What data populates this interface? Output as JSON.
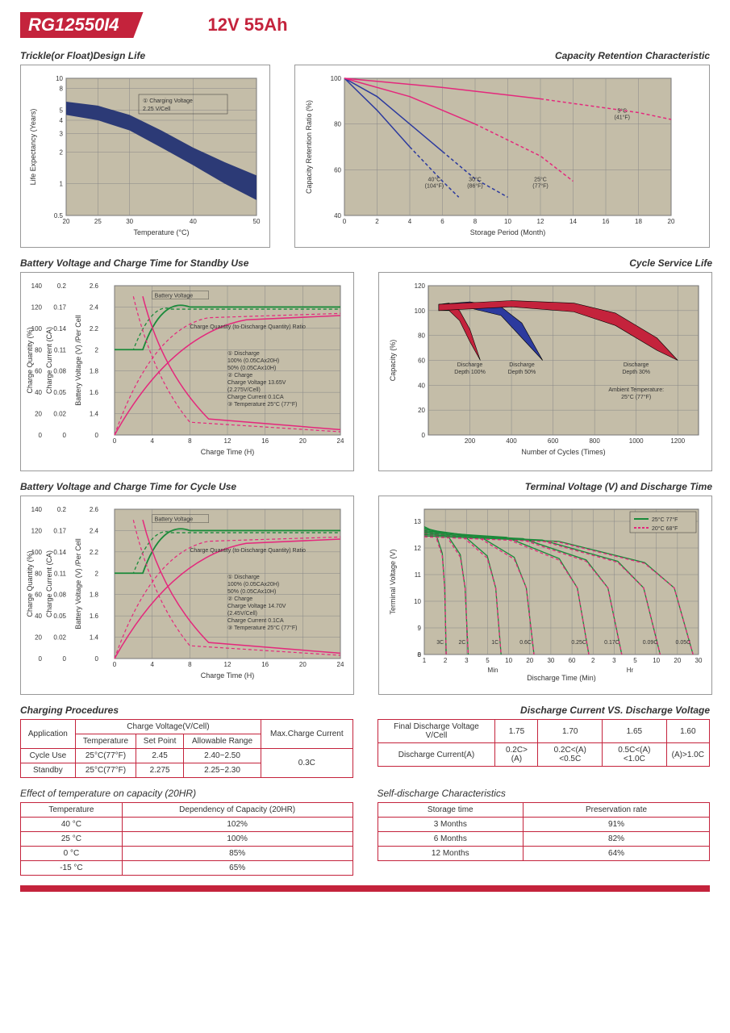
{
  "header": {
    "model": "RG12550I4",
    "spec": "12V  55Ah"
  },
  "chart1": {
    "title": "Trickle(or Float)Design Life",
    "xlabel": "Temperature (°C)",
    "ylabel": "Life Expectancy (Years)",
    "xticks": [
      20,
      25,
      30,
      40,
      50
    ],
    "yticks": [
      0.5,
      1,
      2,
      3,
      4,
      5,
      8,
      10
    ],
    "yscale": "log",
    "band_upper": [
      [
        20,
        6
      ],
      [
        25,
        5.5
      ],
      [
        30,
        4.5
      ],
      [
        35,
        3.2
      ],
      [
        40,
        2.2
      ],
      [
        45,
        1.6
      ],
      [
        50,
        1.2
      ]
    ],
    "band_lower": [
      [
        20,
        4.5
      ],
      [
        25,
        4
      ],
      [
        30,
        3.2
      ],
      [
        35,
        2.2
      ],
      [
        40,
        1.5
      ],
      [
        45,
        1.0
      ],
      [
        50,
        0.7
      ]
    ],
    "band_color": "#2c3a76",
    "annotation": "① Charging Voltage 2.25 V/Cell",
    "bg": "#c4bda8",
    "grid": "#888"
  },
  "chart2": {
    "title": "Capacity Retention Characteristic",
    "xlabel": "Storage Period (Month)",
    "ylabel": "Capacity Retention Ratio (%)",
    "xticks": [
      0,
      2,
      4,
      6,
      8,
      10,
      12,
      14,
      16,
      18,
      20
    ],
    "yticks": [
      40,
      60,
      80,
      100
    ],
    "series": [
      {
        "label": "40°C (104°F)",
        "color": "#2c3a9e",
        "x": [
          0,
          2,
          4,
          6,
          7
        ],
        "y": [
          100,
          86,
          70,
          55,
          48
        ],
        "dash_after": 5
      },
      {
        "label": "30°C (86°F)",
        "color": "#2c3a9e",
        "x": [
          0,
          2,
          4,
          6,
          8,
          10
        ],
        "y": [
          100,
          92,
          80,
          68,
          56,
          48
        ],
        "dash_after": 7.5
      },
      {
        "label": "25°C (77°F)",
        "color": "#e4287c",
        "x": [
          0,
          4,
          8,
          12,
          14
        ],
        "y": [
          100,
          92,
          80,
          66,
          55
        ],
        "dash_after": 11
      },
      {
        "label": "5°C (41°F)",
        "color": "#e4287c",
        "x": [
          0,
          6,
          12,
          18,
          20
        ],
        "y": [
          100,
          96,
          91,
          85,
          82
        ],
        "dash_after": 16
      }
    ],
    "bg": "#c4bda8",
    "grid": "#888"
  },
  "chart3": {
    "title": "Battery Voltage and Charge Time for Standby Use",
    "xlabel": "Charge Time (H)",
    "y1_label": "Charge Quantity (%)",
    "y2_label": "Charge Current (CA)",
    "y3_label": "Battery Voltage (V) /Per Cell",
    "xticks": [
      0,
      4,
      8,
      12,
      16,
      20,
      24
    ],
    "y1_ticks": [
      0,
      20,
      40,
      60,
      80,
      100,
      120,
      140
    ],
    "y2_ticks": [
      0,
      0.02,
      0.05,
      0.08,
      0.11,
      0.14,
      0.17,
      0.2
    ],
    "y3_ticks": [
      0,
      1.4,
      1.6,
      1.8,
      2.0,
      2.2,
      2.4,
      2.6
    ],
    "colors": {
      "quantity": "#e4287c",
      "current": "#e4287c",
      "voltage": "#1a8a3a"
    },
    "notes": [
      "① Discharge",
      "  100% (0.05CAx20H)",
      "  50% (0.05CAx10H)",
      "② Charge",
      "  Charge Voltage 13.65V",
      "  (2.275V/Cell)",
      "  Charge Current 0.1CA",
      "③ Temperature 25°C (77°F)"
    ],
    "label_bv": "Battery Voltage",
    "label_cq": "Charge Quantity (to-Discharge Quantity) Ratio",
    "label_cc": "Charge Current",
    "bg": "#c4bda8",
    "grid": "#888"
  },
  "chart4": {
    "title": "Cycle Service Life",
    "xlabel": "Number of Cycles (Times)",
    "ylabel": "Capacity (%)",
    "xticks": [
      200,
      400,
      600,
      800,
      1000,
      1200
    ],
    "yticks": [
      0,
      20,
      40,
      60,
      80,
      100,
      120
    ],
    "bands": [
      {
        "label": "Discharge Depth 100%",
        "color": "#c4233c",
        "x": [
          50,
          100,
          150,
          200,
          250
        ],
        "up": [
          105,
          106,
          100,
          85,
          60
        ],
        "lo": [
          100,
          100,
          92,
          75,
          60
        ]
      },
      {
        "label": "Discharge Depth 50%",
        "color": "#2c3a9e",
        "x": [
          50,
          200,
          350,
          450,
          550
        ],
        "up": [
          105,
          107,
          103,
          90,
          60
        ],
        "lo": [
          100,
          102,
          96,
          78,
          60
        ]
      },
      {
        "label": "Discharge Depth 30%",
        "color": "#c4233c",
        "x": [
          50,
          400,
          700,
          900,
          1100,
          1200
        ],
        "up": [
          105,
          108,
          106,
          98,
          78,
          60
        ],
        "lo": [
          100,
          103,
          99,
          88,
          68,
          60
        ]
      }
    ],
    "ambient": "Ambient Temperature: 25°C (77°F)",
    "bg": "#c4bda8",
    "grid": "#888"
  },
  "chart5": {
    "title": "Battery Voltage and Charge Time for Cycle Use",
    "xlabel": "Charge Time (H)",
    "notes": [
      "① Discharge",
      "  100% (0.05CAx20H)",
      "  50% (0.05CAx10H)",
      "② Charge",
      "  Charge Voltage 14.70V",
      "  (2.45V/Cell)",
      "  Charge Current 0.1CA",
      "③ Temperature 25°C (77°F)"
    ],
    "bg": "#c4bda8",
    "grid": "#888"
  },
  "chart6": {
    "title": "Terminal Voltage (V) and Discharge Time",
    "xlabel": "Discharge Time (Min)",
    "ylabel": "Terminal Voltage (V)",
    "yticks": [
      0,
      8,
      9,
      10,
      11,
      12,
      13
    ],
    "xticks_labels": [
      "1",
      "2",
      "3",
      "5",
      "10",
      "20",
      "30",
      "60",
      "2",
      "3",
      "5",
      "10",
      "20",
      "30"
    ],
    "xunits": [
      "Min",
      "Hr"
    ],
    "legend": [
      {
        "label": "25°C 77°F",
        "color": "#1a8a3a",
        "dash": false
      },
      {
        "label": "20°C 68°F",
        "color": "#e4287c",
        "dash": true
      }
    ],
    "clabels": [
      "3C",
      "2C",
      "1C",
      "0.6C",
      "0.25C",
      "0.17C",
      "0.09C",
      "0.05C"
    ],
    "bg": "#c4bda8",
    "grid": "#888"
  },
  "table1": {
    "title": "Charging Procedures",
    "h1": "Application",
    "h2": "Charge Voltage(V/Cell)",
    "h3": "Max.Charge Current",
    "sub": [
      "Temperature",
      "Set Point",
      "Allowable Range"
    ],
    "rows": [
      [
        "Cycle Use",
        "25°C(77°F)",
        "2.45",
        "2.40~2.50"
      ],
      [
        "Standby",
        "25°C(77°F)",
        "2.275",
        "2.25~2.30"
      ]
    ],
    "max": "0.3C"
  },
  "table2": {
    "title": "Discharge Current VS. Discharge Voltage",
    "r1": [
      "Final Discharge Voltage V/Cell",
      "1.75",
      "1.70",
      "1.65",
      "1.60"
    ],
    "r2": [
      "Discharge Current(A)",
      "0.2C>(A)",
      "0.2C<(A)<0.5C",
      "0.5C<(A)<1.0C",
      "(A)>1.0C"
    ]
  },
  "table3": {
    "title": "Effect of temperature on capacity (20HR)",
    "headers": [
      "Temperature",
      "Dependency of Capacity (20HR)"
    ],
    "rows": [
      [
        "40 °C",
        "102%"
      ],
      [
        "25 °C",
        "100%"
      ],
      [
        "0 °C",
        "85%"
      ],
      [
        "-15 °C",
        "65%"
      ]
    ]
  },
  "table4": {
    "title": "Self-discharge Characteristics",
    "headers": [
      "Storage time",
      "Preservation rate"
    ],
    "rows": [
      [
        "3 Months",
        "91%"
      ],
      [
        "6 Months",
        "82%"
      ],
      [
        "12 Months",
        "64%"
      ]
    ]
  }
}
